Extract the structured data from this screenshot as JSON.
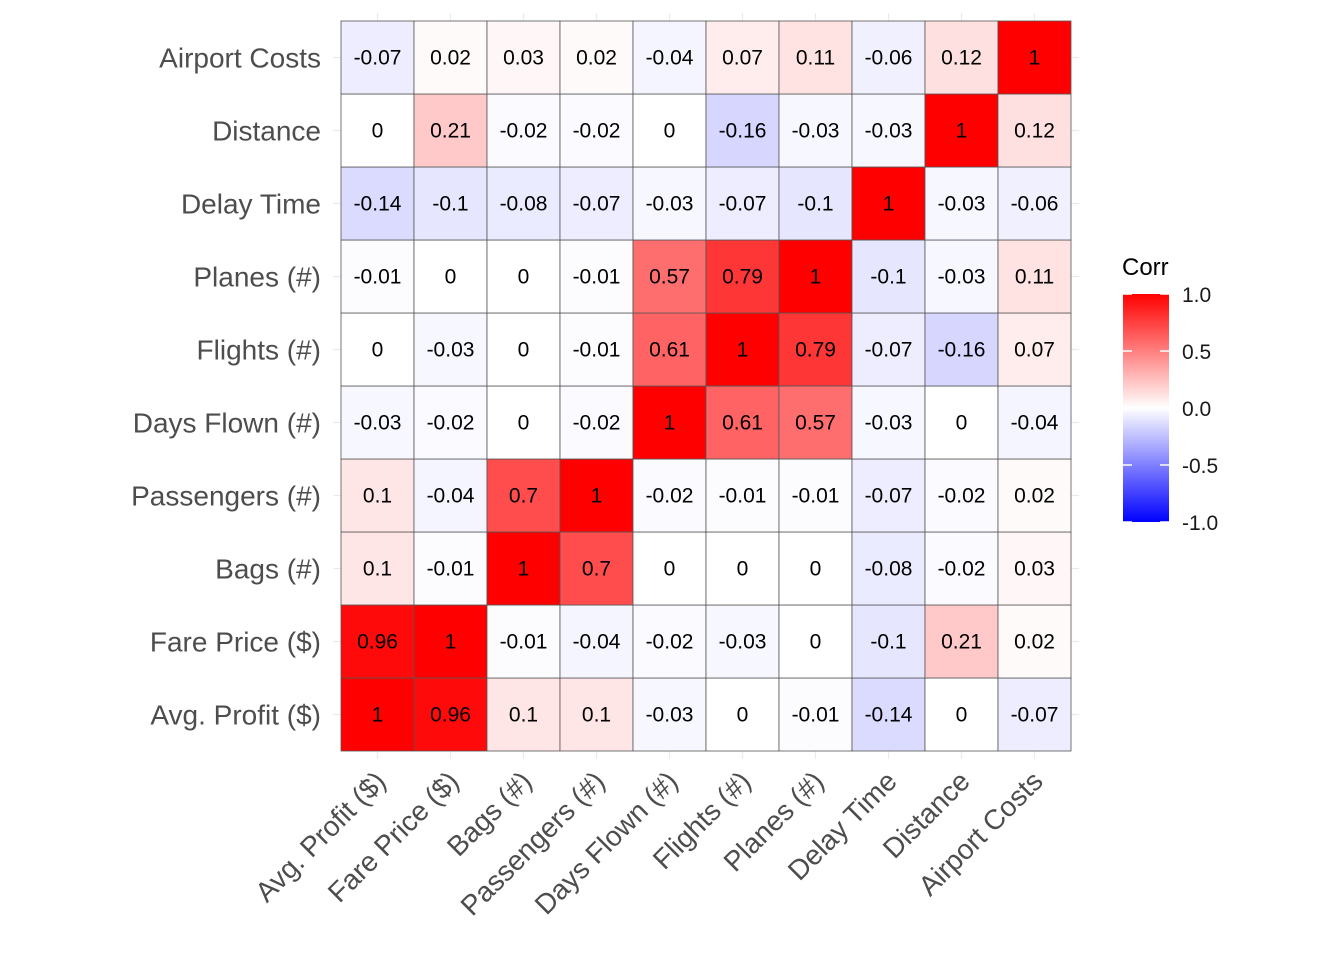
{
  "chart_data": {
    "type": "heatmap",
    "title": "",
    "xlabel": "",
    "ylabel": "",
    "variables": [
      "Avg. Profit ($)",
      "Fare Price ($)",
      "Bags (#)",
      "Passengers (#)",
      "Days Flown (#)",
      "Flights (#)",
      "Planes (#)",
      "Delay Time",
      "Distance",
      "Airport Costs"
    ],
    "matrix": [
      [
        1,
        0.96,
        0.1,
        0.1,
        -0.03,
        0,
        -0.01,
        -0.14,
        0,
        -0.07
      ],
      [
        0.96,
        1,
        -0.01,
        -0.04,
        -0.02,
        -0.03,
        0,
        -0.1,
        0.21,
        0.02
      ],
      [
        0.1,
        -0.01,
        1,
        0.7,
        0,
        0,
        0,
        -0.08,
        -0.02,
        0.03
      ],
      [
        0.1,
        -0.04,
        0.7,
        1,
        -0.02,
        -0.01,
        -0.01,
        -0.07,
        -0.02,
        0.02
      ],
      [
        -0.03,
        -0.02,
        0,
        -0.02,
        1,
        0.61,
        0.57,
        -0.03,
        0,
        -0.04
      ],
      [
        0,
        -0.03,
        0,
        -0.01,
        0.61,
        1,
        0.79,
        -0.07,
        -0.16,
        0.07
      ],
      [
        -0.01,
        0,
        0,
        -0.01,
        0.57,
        0.79,
        1,
        -0.1,
        -0.03,
        0.11
      ],
      [
        -0.14,
        -0.1,
        -0.08,
        -0.07,
        -0.03,
        -0.07,
        -0.1,
        1,
        -0.03,
        -0.06
      ],
      [
        0,
        0.21,
        -0.02,
        -0.02,
        0,
        -0.16,
        -0.03,
        -0.03,
        1,
        0.12
      ],
      [
        -0.07,
        0.02,
        0.03,
        0.02,
        -0.04,
        0.07,
        0.11,
        -0.06,
        0.12,
        1
      ]
    ],
    "legend": {
      "title": "Corr",
      "ticks": [
        1.0,
        0.5,
        0.0,
        -0.5,
        -1.0
      ],
      "tick_labels": [
        "1.0",
        "0.5",
        "0.0",
        "-0.5",
        "-1.0"
      ],
      "placement": "right"
    },
    "colors": {
      "low": "#0000ff",
      "mid": "#ffffff",
      "high": "#ff0000",
      "cell_border": "#555555"
    },
    "grid": true
  }
}
